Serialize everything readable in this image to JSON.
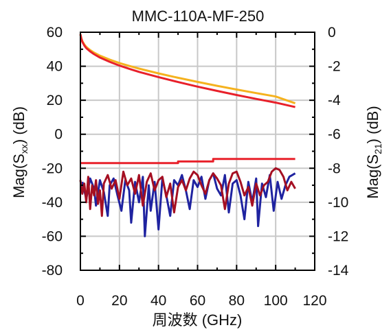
{
  "chart_data": {
    "type": "line",
    "title": "MMC-110A-MF-250",
    "xlabel": "周波数 (GHz)",
    "ylabel_left": {
      "pre": "Mag(S",
      "sub": "xx",
      "post": ") (dB)"
    },
    "ylabel_right": {
      "pre": "Mag(S",
      "sub": "21",
      "post": ") (dB)"
    },
    "x_ticks": [
      "0",
      "20",
      "40",
      "60",
      "80",
      "100",
      "120"
    ],
    "y_left_ticks": [
      "60",
      "40",
      "20",
      "0",
      "-20",
      "-40",
      "-60",
      "-80"
    ],
    "y_right_ticks": [
      "0",
      "-2",
      "-4",
      "-6",
      "-8",
      "-10",
      "-12",
      "-14"
    ],
    "xlim": [
      0,
      120
    ],
    "ylim_left": [
      -80,
      60
    ],
    "ylim_right": [
      -14,
      0
    ],
    "grid": true,
    "colors": {
      "s21_orange": "#f5b21e",
      "s21_red": "#e8202a",
      "s11_blue": "#1f23a0",
      "s22_darkred": "#a50f22",
      "flat_red": "#e8202a",
      "grid": "#c8c8c8",
      "axis": "#000000"
    },
    "series": [
      {
        "axis": "right",
        "x": [
          0,
          0.5,
          1,
          2,
          3,
          5,
          7,
          10,
          15,
          20,
          25,
          30,
          40,
          50,
          60,
          70,
          80,
          90,
          100,
          110
        ],
        "y": [
          -0.12,
          -0.35,
          -0.52,
          -0.72,
          -0.86,
          -1.05,
          -1.2,
          -1.38,
          -1.61,
          -1.81,
          -1.98,
          -2.14,
          -2.42,
          -2.68,
          -2.92,
          -3.15,
          -3.37,
          -3.58,
          -3.78,
          -4.18
        ]
      },
      {
        "axis": "right",
        "x": [
          0,
          0.5,
          1,
          2,
          3,
          5,
          7,
          10,
          15,
          20,
          25,
          30,
          40,
          50,
          60,
          70,
          80,
          90,
          100,
          110
        ],
        "y": [
          -0.12,
          -0.38,
          -0.56,
          -0.78,
          -0.93,
          -1.13,
          -1.29,
          -1.49,
          -1.74,
          -1.96,
          -2.15,
          -2.33,
          -2.64,
          -2.93,
          -3.2,
          -3.45,
          -3.69,
          -3.92,
          -4.14,
          -4.4
        ]
      },
      {
        "axis": "left",
        "x": [
          0,
          50,
          50,
          68,
          68,
          110
        ],
        "y": [
          -17,
          -17,
          -16,
          -16,
          -14.5,
          -14.5
        ]
      },
      {
        "axis": "left",
        "x": [
          1,
          3,
          5,
          7,
          8,
          10,
          12,
          14,
          15,
          17,
          19,
          21,
          23,
          25,
          26,
          28,
          30,
          32,
          33,
          35,
          36,
          38,
          40,
          42,
          44,
          46,
          48,
          50,
          52,
          54,
          56,
          58,
          60,
          62,
          64,
          66,
          68,
          70,
          72,
          74,
          76,
          78,
          80,
          82,
          84,
          86,
          88,
          90,
          91,
          93,
          95,
          97,
          99,
          101,
          103,
          105,
          107,
          110
        ],
        "y": [
          -28,
          -38,
          -26,
          -32,
          -42,
          -27,
          -34,
          -48,
          -30,
          -26,
          -36,
          -45,
          -27,
          -33,
          -52,
          -28,
          -40,
          -25,
          -60,
          -30,
          -45,
          -28,
          -56,
          -26,
          -36,
          -48,
          -27,
          -30,
          -24,
          -33,
          -44,
          -27,
          -31,
          -25,
          -38,
          -27,
          -23,
          -32,
          -36,
          -24,
          -46,
          -29,
          -27,
          -36,
          -50,
          -28,
          -40,
          -26,
          -54,
          -29,
          -37,
          -24,
          -45,
          -28,
          -38,
          -30,
          -25,
          -23
        ]
      },
      {
        "axis": "left",
        "x": [
          0,
          1,
          2,
          3,
          4,
          5,
          6,
          7,
          8,
          9,
          10,
          11,
          12,
          14,
          16,
          18,
          20,
          22,
          24,
          26,
          28,
          30,
          32,
          34,
          36,
          38,
          40,
          42,
          44,
          46,
          48,
          50,
          52,
          54,
          56,
          58,
          60,
          62,
          64,
          66,
          68,
          70,
          72,
          74,
          76,
          78,
          80,
          82,
          84,
          86,
          88,
          90,
          92,
          94,
          96,
          98,
          100,
          102,
          104,
          106,
          108,
          110
        ],
        "y": [
          -27,
          -35,
          -29,
          -40,
          -25,
          -44,
          -30,
          -36,
          -27,
          -41,
          -33,
          -48,
          -29,
          -24,
          -32,
          -27,
          -38,
          -22,
          -30,
          -26,
          -35,
          -24,
          -42,
          -28,
          -23,
          -33,
          -27,
          -25,
          -37,
          -29,
          -46,
          -31,
          -27,
          -33,
          -26,
          -22,
          -24,
          -30,
          -35,
          -27,
          -23,
          -26,
          -30,
          -44,
          -29,
          -23,
          -22,
          -28,
          -36,
          -31,
          -42,
          -29,
          -36,
          -30,
          -28,
          -22,
          -20,
          -21,
          -25,
          -33,
          -28,
          -32
        ]
      }
    ]
  }
}
